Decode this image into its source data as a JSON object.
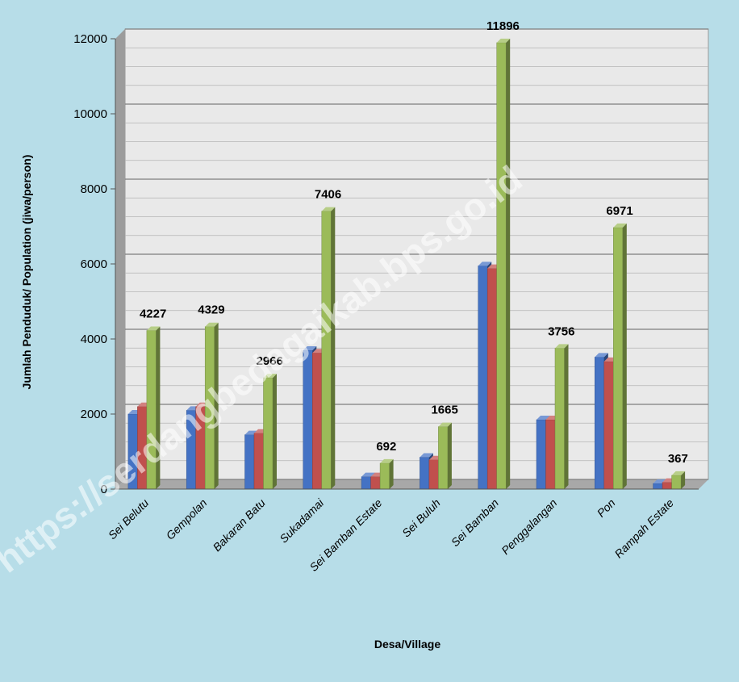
{
  "chart_data": {
    "type": "bar",
    "title": "",
    "xlabel": "Desa/Village",
    "ylabel": "Jumlah Penduduk/ Population  (jiwa/person)",
    "ylim": [
      0,
      12000
    ],
    "yticks": [
      0,
      2000,
      4000,
      6000,
      8000,
      10000,
      12000
    ],
    "grid": true,
    "legend": "none",
    "categories": [
      "Sei Belutu",
      "Gempolan",
      "Bakaran Batu",
      "Sukadamai",
      "Sei Bamban Estate",
      "Sei Buluh",
      "Sei Bamban",
      "Penggalangan",
      "Pon",
      "Rampah Estate"
    ],
    "series": [
      {
        "values": [
          2000,
          2100,
          1450,
          3700,
          330,
          850,
          5950,
          1850,
          3520,
          150
        ],
        "color": "#4472c4"
      },
      {
        "values": [
          2200,
          2200,
          1490,
          3630,
          330,
          780,
          5880,
          1850,
          3400,
          180
        ],
        "color": "#c0504d"
      },
      {
        "values": [
          4227,
          4329,
          2966,
          7406,
          692,
          1665,
          11896,
          3756,
          6971,
          367
        ],
        "color": "#9bbb59",
        "labels": [
          "4227",
          "4329",
          "2966",
          "7406",
          "692",
          "1665",
          "11896",
          "3756",
          "6971",
          "367"
        ]
      }
    ]
  },
  "watermark": "https://serdangbedagaikab.bps.go.id"
}
